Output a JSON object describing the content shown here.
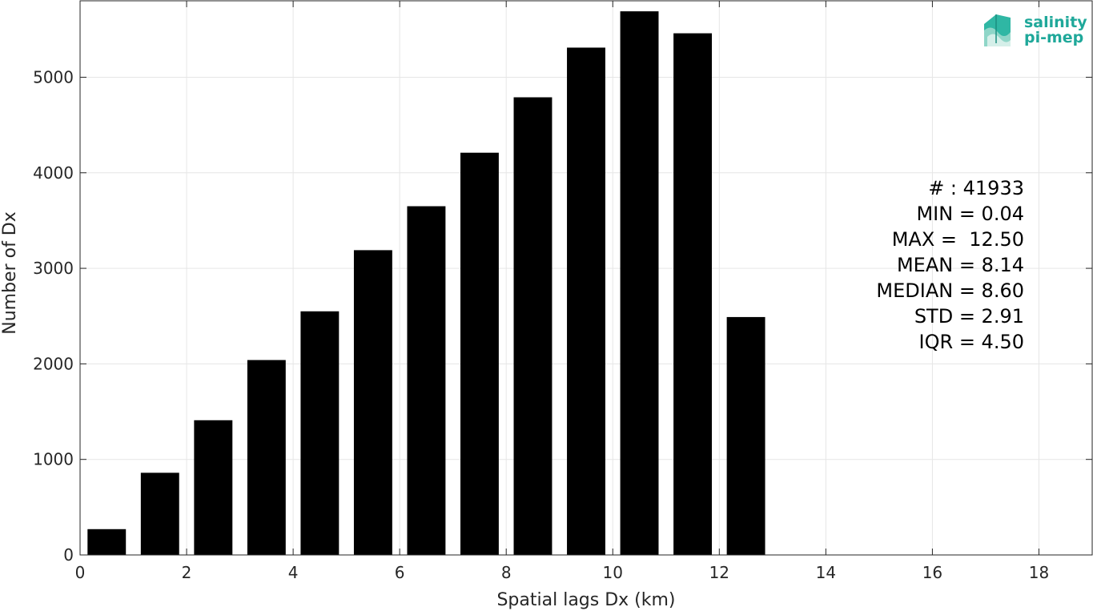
{
  "chart_data": {
    "type": "bar",
    "xlabel": "Spatial lags Dx (km)",
    "ylabel": "Number of Dx",
    "xlim": [
      0,
      19
    ],
    "ylim": [
      0,
      5800
    ],
    "x_ticks": [
      0,
      2,
      4,
      6,
      8,
      10,
      12,
      14,
      16,
      18
    ],
    "y_ticks": [
      0,
      1000,
      2000,
      3000,
      4000,
      5000
    ],
    "bar_width": 0.72,
    "x": [
      0.5,
      1.5,
      2.5,
      3.5,
      4.5,
      5.5,
      6.5,
      7.5,
      8.5,
      9.5,
      10.5,
      11.5,
      12.5
    ],
    "values": [
      270,
      860,
      1410,
      2040,
      2550,
      3190,
      3650,
      4210,
      4790,
      5310,
      5690,
      5460,
      2490
    ],
    "grid": true,
    "bar_color": "#000000",
    "annotations": [
      "# : 41933",
      "MIN = 0.04",
      "MAX =  12.50",
      "MEAN = 8.14",
      "MEDIAN = 8.60",
      "STD = 2.91",
      "IQR = 4.50"
    ]
  },
  "logo": {
    "line1": "salinity",
    "line2": "pi-mep",
    "color": "#1fa89a"
  }
}
